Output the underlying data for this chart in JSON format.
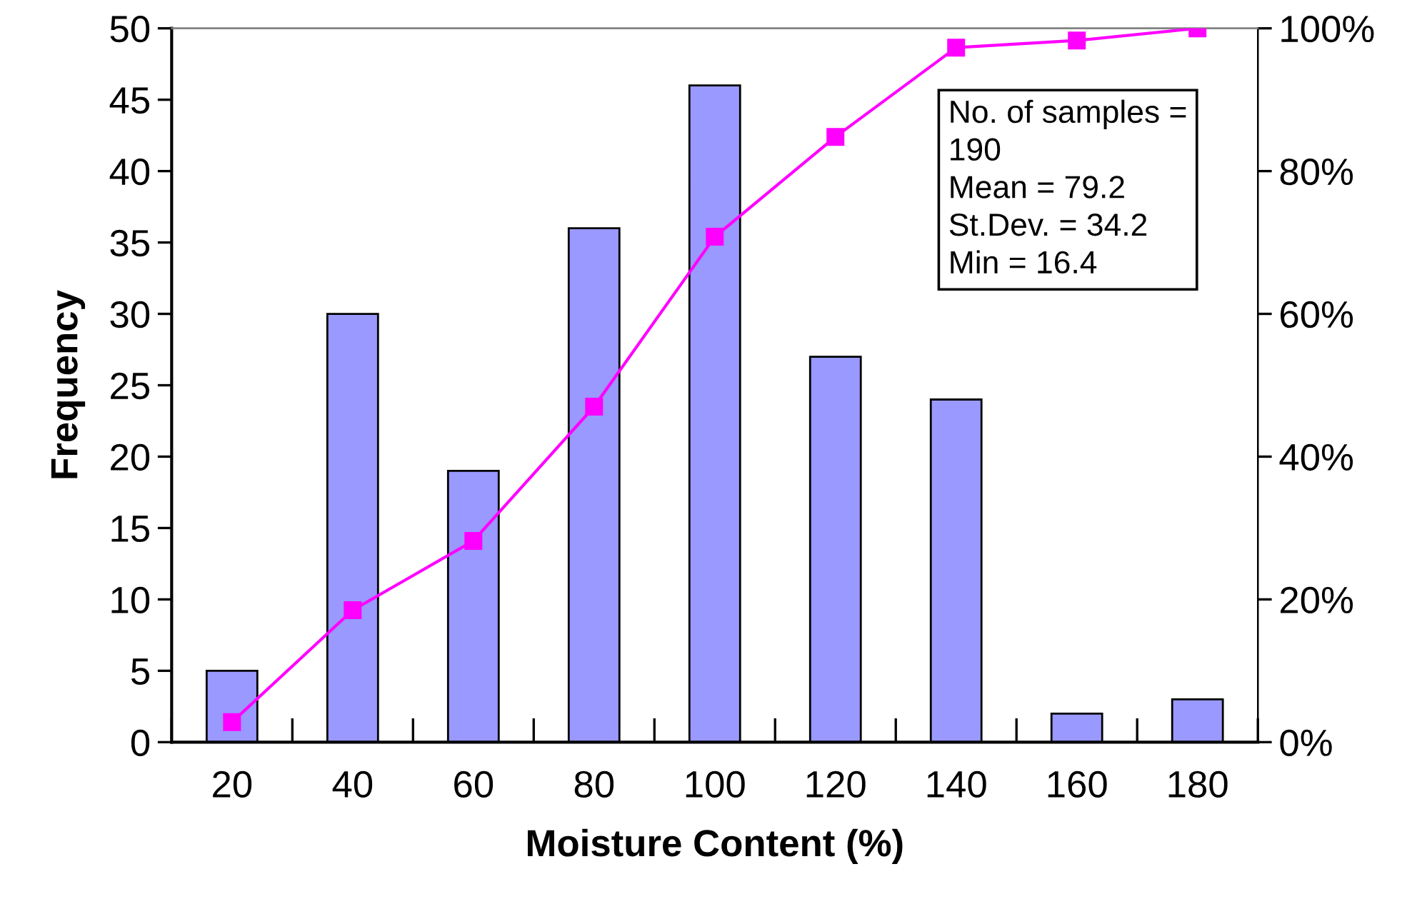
{
  "chart_data": {
    "type": "bar",
    "xlabel": "Moisture Content (%)",
    "ylabel": "Frequency",
    "categories": [
      "20",
      "40",
      "60",
      "80",
      "100",
      "120",
      "140",
      "160",
      "180"
    ],
    "series": [
      {
        "color": "#9999ff",
        "values": [
          5,
          30,
          19,
          36,
          46,
          27,
          24,
          2,
          3
        ]
      },
      {
        "type": "line",
        "axis": "y2",
        "color": "#ff00ff",
        "marker": "square",
        "line_style": "solid",
        "values": [
          2.8,
          18.5,
          28.2,
          47,
          70.8,
          84.8,
          97.3,
          98.3,
          100
        ]
      }
    ],
    "ylim": [
      0,
      50
    ],
    "yticks": [
      0,
      5,
      10,
      15,
      20,
      25,
      30,
      35,
      40,
      45,
      50
    ],
    "y2lim": [
      0,
      100
    ],
    "y2ticks": [
      {
        "value": 0,
        "label": "0%"
      },
      {
        "value": 20,
        "label": "20%"
      },
      {
        "value": 40,
        "label": "40%"
      },
      {
        "value": 60,
        "label": "60%"
      },
      {
        "value": 80,
        "label": "80%"
      },
      {
        "value": 100,
        "label": "100%"
      }
    ],
    "grid": false,
    "legend": false,
    "annotations": [
      "No. of samples =\n190\nMean = 79.2\nSt.Dev. = 34.2\nMin = 16.4"
    ]
  }
}
